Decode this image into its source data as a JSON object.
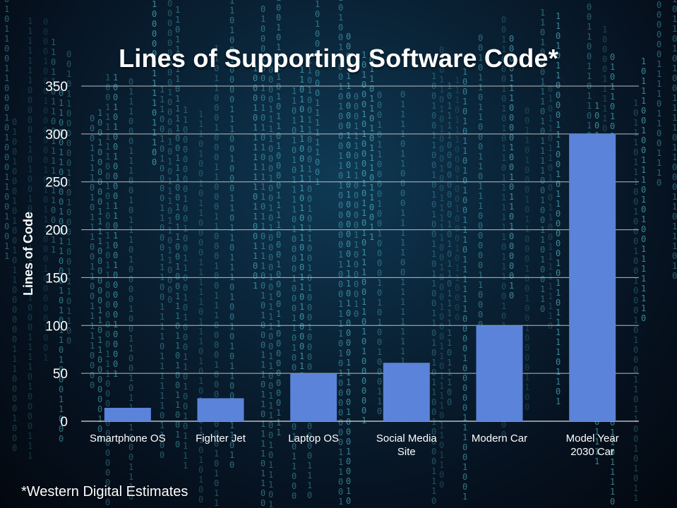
{
  "chart_data": {
    "type": "bar",
    "title": "Lines of Supporting Software Code*",
    "xlabel": "",
    "ylabel": "Lines of Code",
    "categories": [
      "Smartphone OS",
      "Fighter Jet",
      "Laptop OS",
      "Social Media Site",
      "Modern Car",
      "Model Year 2030 Car"
    ],
    "category_lines": [
      [
        "Smartphone OS"
      ],
      [
        "Fighter Jet"
      ],
      [
        "Laptop OS"
      ],
      [
        "Social Media",
        "Site"
      ],
      [
        "Modern Car"
      ],
      [
        "Model Year",
        "2030 Car"
      ]
    ],
    "values": [
      14,
      24,
      50,
      61,
      100,
      300
    ],
    "ylim": [
      0,
      350
    ],
    "yticks": [
      0,
      50,
      100,
      150,
      200,
      250,
      300,
      350
    ],
    "grid": true,
    "legend": "none",
    "bar_color": "#5b83d9",
    "gridline_color": "#d9d9d9"
  },
  "footnote": "*Western Digital Estimates",
  "colors": {
    "background": "#07101c",
    "digits": "#5fd6e6"
  }
}
